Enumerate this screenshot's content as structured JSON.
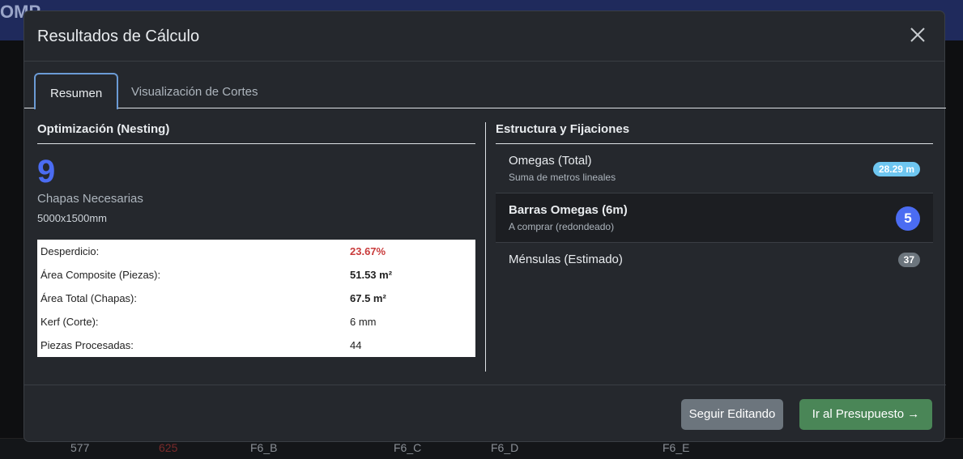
{
  "background": {
    "logo": "OMP",
    "labels": [
      "577",
      "625",
      "F6_B",
      "F6_C",
      "F6_D",
      "F6_E"
    ]
  },
  "modal": {
    "title": "Resultados de Cálculo",
    "tabs": [
      {
        "label": "Resumen",
        "active": true
      },
      {
        "label": "Visualización de Cortes",
        "active": false
      }
    ],
    "nesting": {
      "heading": "Optimización (Nesting)",
      "sheets": "9",
      "sheets_label": "Chapas Necesarias",
      "sheet_size": "5000x1500mm",
      "rows": [
        {
          "label": "Desperdicio:",
          "value": "23.67%"
        },
        {
          "label": "Área Composite (Piezas):",
          "value": "51.53 m²"
        },
        {
          "label": "Área Total (Chapas):",
          "value": "67.5 m²"
        },
        {
          "label": "Kerf (Corte):",
          "value": "6 mm"
        },
        {
          "label": "Piezas Procesadas:",
          "value": "44"
        }
      ]
    },
    "structure": {
      "heading": "Estructura y Fijaciones",
      "items": [
        {
          "name": "Omegas (Total)",
          "sub": "Suma de metros lineales",
          "badge": "28.29 m"
        },
        {
          "name": "Barras Omegas (6m)",
          "sub": "A comprar (redondeado)",
          "badge": "5"
        },
        {
          "name": "Ménsulas (Estimado)",
          "badge": "37"
        }
      ]
    },
    "footer": {
      "secondary": "Seguir Editando",
      "primary": "Ir al Presupuesto →"
    }
  },
  "colors": {
    "accent": "#4b6cf2",
    "danger": "#c93b3b",
    "success": "#4a8657",
    "info": "#6ec6f0"
  }
}
